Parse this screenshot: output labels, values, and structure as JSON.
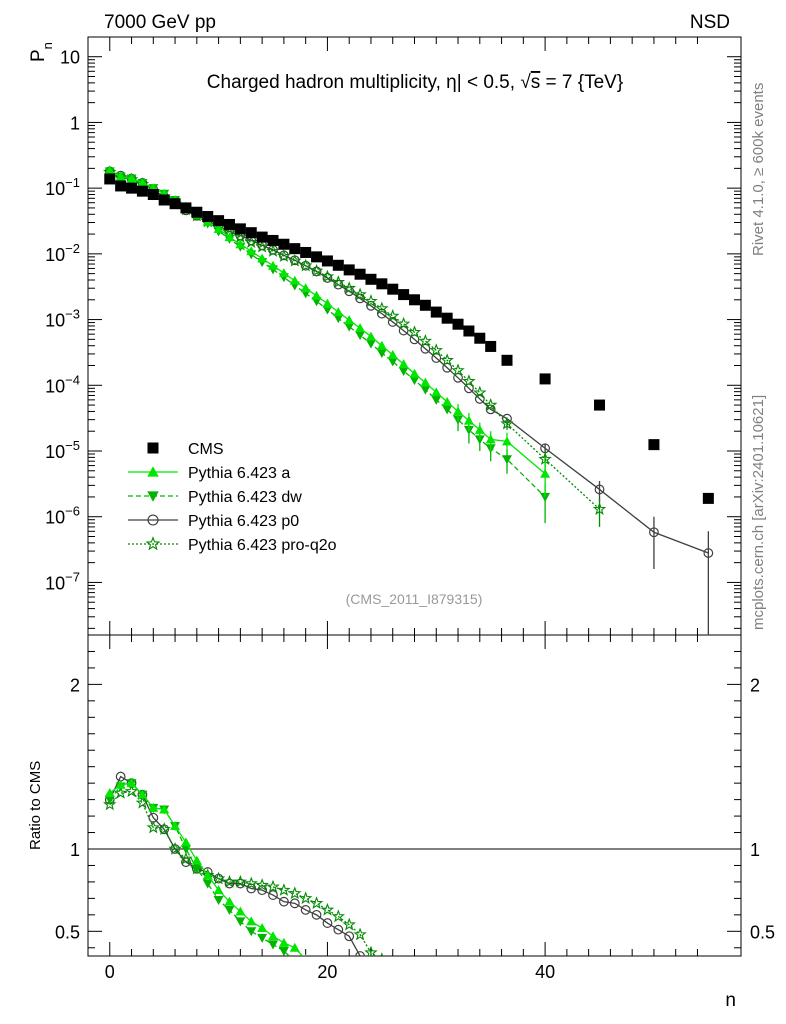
{
  "header": {
    "left": "7000 GeV pp",
    "right": "NSD"
  },
  "side_labels": {
    "rivet": "Rivet 4.1.0, ≥ 600k events",
    "mcplots": "mcplots.cern.ch [arXiv:2401.10621]"
  },
  "colors": {
    "cms": "#000000",
    "a": "#00e600",
    "dw": "#00b400",
    "p0": "#404040",
    "proq2o": "#008c00"
  },
  "chart_data": [
    {
      "type": "scatter",
      "scale": "log",
      "title": "Charged hadron multiplicity, η| < 0.5, √s = 7 {TeV}",
      "title_parts": {
        "pre": "Charged hadron multiplicity, ",
        "eta": "η",
        "mid": "| < 0.5, ",
        "root": "√",
        "s": "s",
        "post": " = 7 {TeV}"
      },
      "ylabel": "P",
      "ylabel_sub": "n",
      "xlim": [
        -2,
        58
      ],
      "ylim_exp": [
        -7.8,
        1.3
      ],
      "yticks": [
        {
          "exp": 1,
          "label": "10"
        },
        {
          "exp": 0,
          "label": "1"
        },
        {
          "exp": -1,
          "base": "10",
          "sup": "−1"
        },
        {
          "exp": -2,
          "base": "10",
          "sup": "−2"
        },
        {
          "exp": -3,
          "base": "10",
          "sup": "−3"
        },
        {
          "exp": -4,
          "base": "10",
          "sup": "−4"
        },
        {
          "exp": -5,
          "base": "10",
          "sup": "−5"
        },
        {
          "exp": -6,
          "base": "10",
          "sup": "−6"
        },
        {
          "exp": -7,
          "base": "10",
          "sup": "−7"
        }
      ],
      "watermark": "(CMS_2011_I879315)",
      "legend": [
        {
          "key": "cms",
          "label": "CMS"
        },
        {
          "key": "a",
          "label": "Pythia 6.423 a"
        },
        {
          "key": "dw",
          "label": "Pythia 6.423 dw"
        },
        {
          "key": "p0",
          "label": "Pythia 6.423 p0"
        },
        {
          "key": "proq2o",
          "label": "Pythia 6.423 pro-q2o"
        }
      ],
      "series": [
        {
          "key": "cms",
          "name": "CMS",
          "x": [
            0,
            1,
            2,
            3,
            4,
            5,
            6,
            7,
            8,
            9,
            10,
            11,
            12,
            13,
            14,
            15,
            16,
            17,
            18,
            19,
            20,
            21,
            22,
            23,
            24,
            25,
            26,
            27,
            28,
            29,
            30,
            31,
            32,
            33,
            34,
            35,
            36.5,
            40,
            45,
            50,
            55
          ],
          "y": [
            0.138,
            0.108,
            0.1,
            0.09,
            0.08,
            0.066,
            0.058,
            0.05,
            0.043,
            0.037,
            0.032,
            0.028,
            0.024,
            0.021,
            0.018,
            0.016,
            0.014,
            0.012,
            0.0105,
            0.009,
            0.0078,
            0.0067,
            0.0057,
            0.0049,
            0.0041,
            0.0035,
            0.0029,
            0.0024,
            0.002,
            0.00165,
            0.0013,
            0.00105,
            0.00085,
            0.00067,
            0.00052,
            0.00039,
            0.00024,
            0.000125,
            5e-05,
            1.25e-05,
            1.9e-06
          ]
        },
        {
          "key": "a",
          "name": "Pythia 6.423 a",
          "x": [
            0,
            1,
            2,
            3,
            4,
            5,
            6,
            7,
            8,
            9,
            10,
            11,
            12,
            13,
            14,
            15,
            16,
            17,
            18,
            19,
            20,
            21,
            22,
            23,
            24,
            25,
            26,
            27,
            28,
            29,
            30,
            31,
            32,
            33,
            34,
            35,
            36.5,
            40
          ],
          "y": [
            0.185,
            0.15,
            0.14,
            0.12,
            0.1,
            0.082,
            0.066,
            0.052,
            0.04,
            0.031,
            0.024,
            0.018,
            0.014,
            0.011,
            0.0085,
            0.0066,
            0.0051,
            0.0039,
            0.003,
            0.0023,
            0.00175,
            0.0013,
            0.00098,
            0.00074,
            0.00055,
            0.0004,
            0.00029,
            0.00021,
            0.00015,
            0.00011,
            7.8e-05,
            5.6e-05,
            4e-05,
            2.9e-05,
            2.1e-05,
            1.5e-05,
            1.4e-05,
            4.5e-06
          ],
          "err": {
            "32": 1.2e-05,
            "33": 9e-06,
            "34": 6e-06,
            "35": 5e-06,
            "36.5": 5e-06,
            "40": 2.5e-06
          }
        },
        {
          "key": "dw",
          "name": "Pythia 6.423 dw",
          "x": [
            0,
            1,
            2,
            3,
            4,
            5,
            6,
            7,
            8,
            9,
            10,
            11,
            12,
            13,
            14,
            15,
            16,
            17,
            18,
            19,
            20,
            21,
            22,
            23,
            24,
            25,
            26,
            27,
            28,
            29,
            30,
            31,
            32,
            33,
            34,
            35,
            36.5,
            40
          ],
          "y": [
            0.18,
            0.15,
            0.14,
            0.12,
            0.1,
            0.082,
            0.066,
            0.05,
            0.038,
            0.029,
            0.022,
            0.017,
            0.0128,
            0.0098,
            0.0075,
            0.0058,
            0.0044,
            0.0033,
            0.0025,
            0.0019,
            0.00142,
            0.00105,
            0.00078,
            0.00058,
            0.00043,
            0.00031,
            0.00023,
            0.000165,
            0.00012,
            8.6e-05,
            6e-05,
            4.3e-05,
            3e-05,
            2.1e-05,
            1.5e-05,
            1.1e-05,
            7.5e-06,
            2e-06
          ],
          "err": {
            "32": 1e-05,
            "33": 8e-06,
            "34": 5e-06,
            "35": 4e-06,
            "36.5": 3e-06,
            "40": 1.2e-06
          }
        },
        {
          "key": "p0",
          "name": "Pythia 6.423 p0",
          "x": [
            0,
            1,
            2,
            3,
            4,
            5,
            6,
            7,
            8,
            9,
            10,
            11,
            12,
            13,
            14,
            15,
            16,
            17,
            18,
            19,
            20,
            21,
            22,
            23,
            24,
            25,
            26,
            27,
            28,
            29,
            30,
            31,
            32,
            33,
            34,
            35,
            36.5,
            40,
            45,
            50,
            55
          ],
          "y": [
            0.18,
            0.155,
            0.14,
            0.12,
            0.095,
            0.074,
            0.058,
            0.046,
            0.038,
            0.032,
            0.026,
            0.022,
            0.019,
            0.016,
            0.0135,
            0.0115,
            0.0095,
            0.008,
            0.0066,
            0.0054,
            0.0043,
            0.0034,
            0.0027,
            0.0021,
            0.00162,
            0.00123,
            0.00092,
            0.00068,
            0.0005,
            0.00036,
            0.00026,
            0.000185,
            0.00013,
            9e-05,
            6.2e-05,
            4.3e-05,
            3.1e-05,
            1.1e-05,
            2.6e-06,
            5.8e-07,
            2.8e-07
          ],
          "err": {
            "40": 2e-06,
            "45": 9e-07,
            "50": 4.2e-07,
            "55": 3.2e-07
          }
        },
        {
          "key": "proq2o",
          "name": "Pythia 6.423 pro-q2o",
          "x": [
            0,
            1,
            2,
            3,
            4,
            5,
            6,
            7,
            8,
            9,
            10,
            11,
            12,
            13,
            14,
            15,
            16,
            17,
            18,
            19,
            20,
            21,
            22,
            23,
            24,
            25,
            26,
            27,
            28,
            29,
            30,
            31,
            32,
            33,
            34,
            35,
            36.5,
            40,
            45
          ],
          "y": [
            0.175,
            0.145,
            0.135,
            0.115,
            0.09,
            0.074,
            0.058,
            0.047,
            0.038,
            0.031,
            0.025,
            0.021,
            0.018,
            0.015,
            0.0128,
            0.011,
            0.0092,
            0.0078,
            0.0066,
            0.0055,
            0.0045,
            0.0037,
            0.003,
            0.0024,
            0.0019,
            0.00147,
            0.00113,
            0.00086,
            0.00064,
            0.00047,
            0.00034,
            0.00024,
            0.000168,
            0.000115,
            7.7e-05,
            5e-05,
            2.6e-05,
            7.5e-06,
            1.3e-06
          ],
          "err": {
            "36.5": 5e-06,
            "40": 2.5e-06,
            "45": 6e-07
          }
        }
      ]
    },
    {
      "type": "line",
      "ylabel": "Ratio to CMS",
      "xlabel": "n",
      "xlim": [
        -2,
        58
      ],
      "ylim": [
        0.35,
        2.3
      ],
      "yticks": [
        {
          "value": 0.5,
          "label": "0.5"
        },
        {
          "value": 1,
          "label": "1"
        },
        {
          "value": 2,
          "label": "2"
        }
      ],
      "xticks": [
        {
          "value": 0,
          "label": "0"
        },
        {
          "value": 20,
          "label": "20"
        },
        {
          "value": 40,
          "label": "40"
        }
      ],
      "series": [
        {
          "key": "a",
          "x": [
            0,
            1,
            2,
            3,
            4,
            5,
            6,
            7,
            8,
            9,
            10,
            11,
            12,
            13,
            14,
            15,
            16,
            17,
            18
          ],
          "y": [
            1.34,
            1.39,
            1.4,
            1.33,
            1.25,
            1.24,
            1.14,
            1.04,
            0.93,
            0.84,
            0.75,
            0.68,
            0.62,
            0.56,
            0.52,
            0.47,
            0.43,
            0.4,
            0.33
          ]
        },
        {
          "key": "dw",
          "x": [
            0,
            1,
            2,
            3,
            4,
            5,
            6,
            7,
            8,
            9,
            10,
            11,
            12,
            13,
            14,
            15,
            16,
            17
          ],
          "y": [
            1.3,
            1.38,
            1.4,
            1.33,
            1.25,
            1.24,
            1.14,
            1.0,
            0.88,
            0.79,
            0.69,
            0.63,
            0.56,
            0.5,
            0.46,
            0.42,
            0.38,
            0.32
          ]
        },
        {
          "key": "p0",
          "x": [
            0,
            1,
            2,
            3,
            4,
            5,
            6,
            7,
            8,
            9,
            10,
            11,
            12,
            13,
            14,
            15,
            16,
            17,
            18,
            19,
            20,
            21,
            22,
            23
          ],
          "y": [
            1.3,
            1.44,
            1.4,
            1.33,
            1.19,
            1.12,
            1.0,
            0.92,
            0.88,
            0.86,
            0.82,
            0.79,
            0.79,
            0.76,
            0.75,
            0.72,
            0.68,
            0.67,
            0.63,
            0.6,
            0.55,
            0.51,
            0.47,
            0.35
          ]
        },
        {
          "key": "proq2o",
          "x": [
            0,
            1,
            2,
            3,
            4,
            5,
            6,
            7,
            8,
            9,
            10,
            11,
            12,
            13,
            14,
            15,
            16,
            17,
            18,
            19,
            20,
            21,
            22,
            23,
            24,
            25
          ],
          "y": [
            1.27,
            1.34,
            1.35,
            1.28,
            1.13,
            1.12,
            1.0,
            0.94,
            0.88,
            0.84,
            0.82,
            0.8,
            0.8,
            0.79,
            0.78,
            0.77,
            0.75,
            0.73,
            0.7,
            0.67,
            0.63,
            0.59,
            0.54,
            0.48,
            0.37,
            0.33
          ]
        }
      ]
    }
  ]
}
